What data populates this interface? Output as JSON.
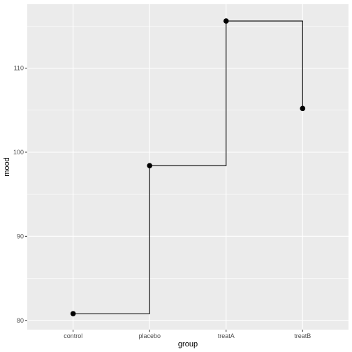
{
  "chart_data": {
    "type": "line",
    "style": "step",
    "categories": [
      "control",
      "placebo",
      "treatA",
      "treatB"
    ],
    "values": [
      80.8,
      98.4,
      115.6,
      105.2
    ],
    "xlabel": "group",
    "ylabel": "mood",
    "ylim": [
      78.9,
      117.6
    ],
    "yticks": [
      80,
      90,
      100,
      110
    ],
    "grid": true,
    "colors": {
      "panel": "#ebebeb",
      "grid_major": "#ffffff",
      "line": "#000000",
      "point": "#000000"
    }
  }
}
